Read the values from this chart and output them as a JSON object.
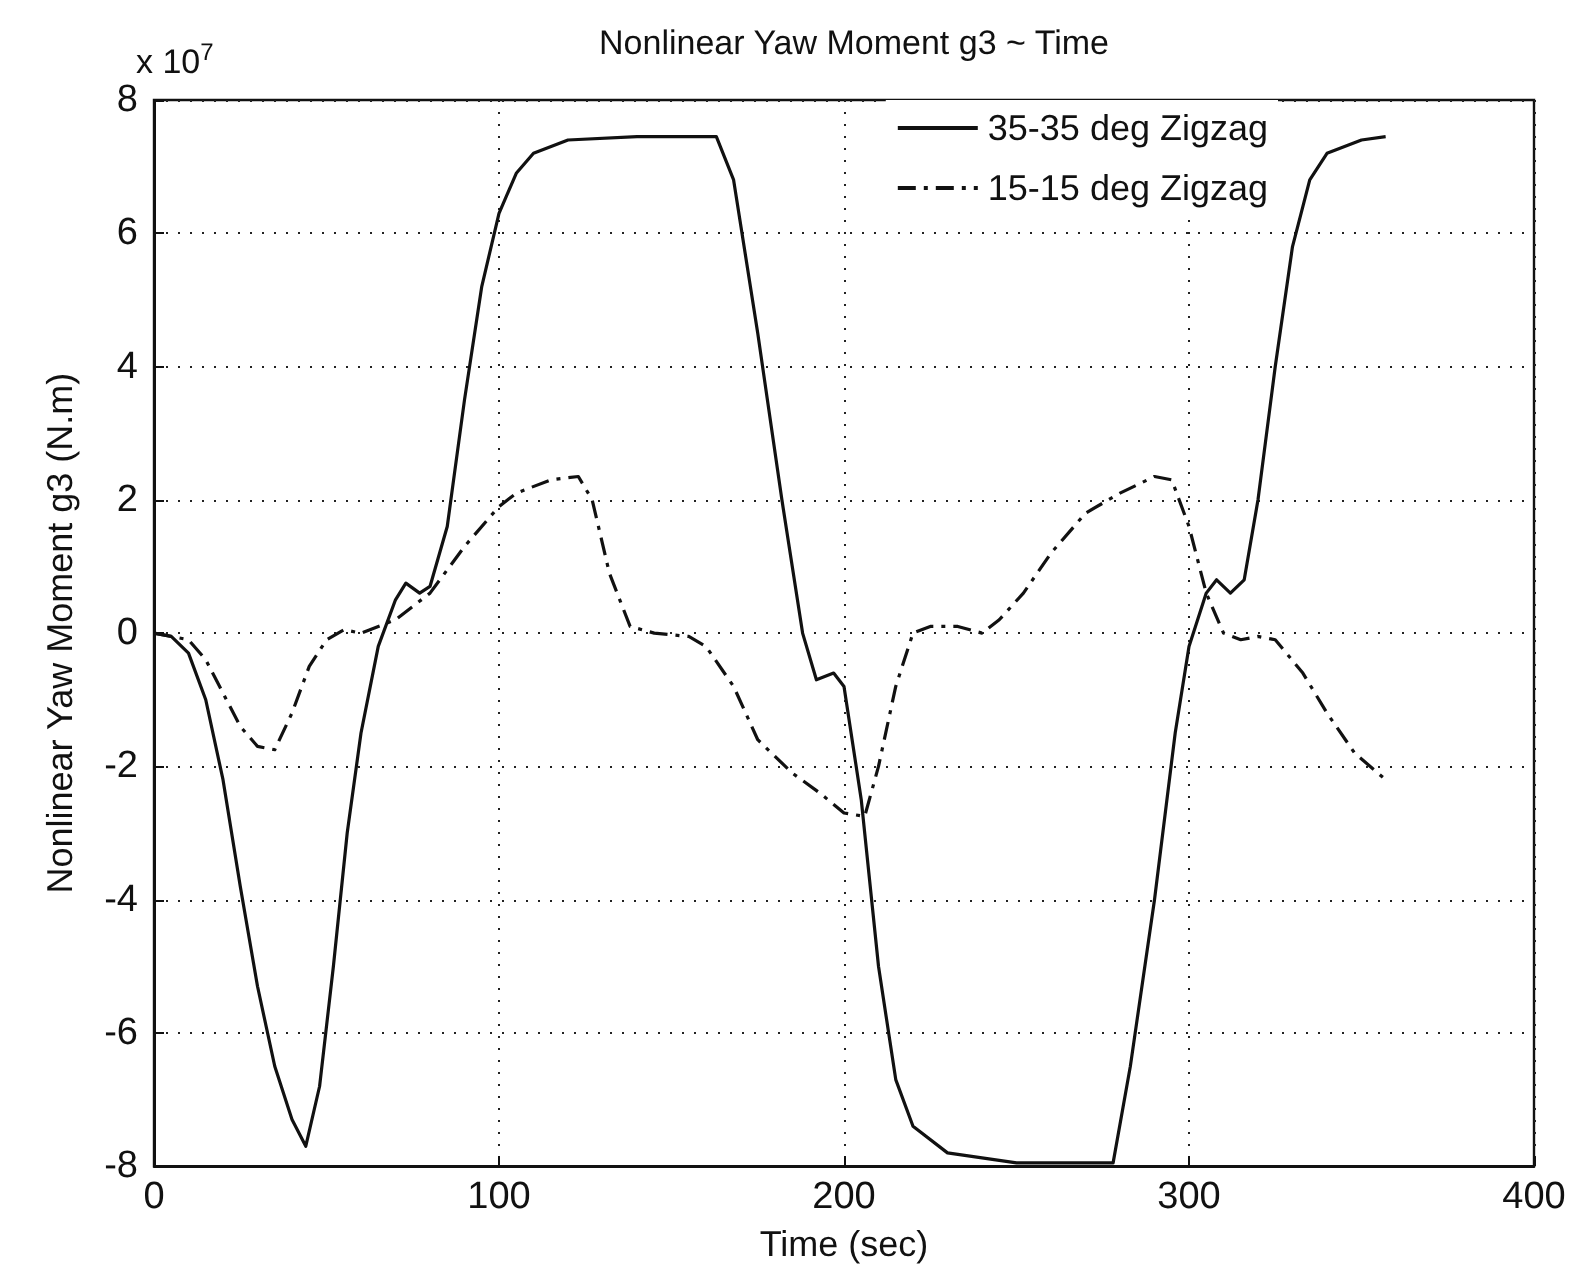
{
  "chart_data": {
    "type": "line",
    "title": "Nonlinear Yaw Moment g3 ~ Time",
    "xlabel": "Time (sec)",
    "ylabel": "Nonlinear Yaw Moment g3 (N.m)",
    "annotations": [
      "x 10$^{7}$"
    ],
    "xlim": [
      0,
      400
    ],
    "xticks": [
      0,
      100,
      200,
      300,
      400
    ],
    "ylim": [
      -8,
      8
    ],
    "yticks": [
      -8,
      -6,
      -4,
      -2,
      0,
      2,
      4,
      6,
      8
    ],
    "grid": true,
    "legend": "top right",
    "marker": "none",
    "series": [
      {
        "name": "35-35 deg Zigzag",
        "color": "#111111",
        "line_style": "solid",
        "x": [
          0,
          5,
          10,
          15,
          20,
          25,
          30,
          35,
          40,
          44,
          48,
          52,
          56,
          60,
          65,
          70,
          73,
          77,
          80,
          85,
          90,
          95,
          100,
          105,
          110,
          120,
          140,
          163,
          168,
          175,
          182,
          188,
          192,
          197,
          200,
          205,
          210,
          215,
          220,
          230,
          250,
          278,
          283,
          290,
          296,
          300,
          305,
          308,
          312,
          316,
          320,
          325,
          330,
          335,
          340,
          350,
          357
        ],
        "values": [
          0,
          -0.05,
          -0.3,
          -1.0,
          -2.2,
          -3.8,
          -5.3,
          -6.5,
          -7.3,
          -7.7,
          -6.8,
          -5.0,
          -3.0,
          -1.5,
          -0.2,
          0.5,
          0.75,
          0.6,
          0.7,
          1.6,
          3.5,
          5.2,
          6.3,
          6.9,
          7.2,
          7.4,
          7.45,
          7.45,
          6.8,
          4.5,
          2.0,
          0.0,
          -0.7,
          -0.6,
          -0.8,
          -2.5,
          -5.0,
          -6.7,
          -7.4,
          -7.8,
          -7.95,
          -7.95,
          -6.5,
          -4.0,
          -1.5,
          -0.2,
          0.6,
          0.8,
          0.6,
          0.8,
          2.0,
          4.0,
          5.8,
          6.8,
          7.2,
          7.4,
          7.45
        ]
      },
      {
        "name": "15-15 deg Zigzag",
        "color": "#111111",
        "line_style": "dashed",
        "x": [
          0,
          10,
          15,
          20,
          25,
          30,
          35,
          40,
          45,
          50,
          55,
          60,
          70,
          80,
          90,
          100,
          105,
          115,
          123,
          127,
          132,
          138,
          145,
          155,
          160,
          168,
          175,
          185,
          193,
          200,
          206,
          210,
          215,
          220,
          225,
          233,
          240,
          245,
          252,
          260,
          270,
          280,
          290,
          295,
          300,
          305,
          310,
          315,
          320,
          325,
          333,
          340,
          348,
          357
        ],
        "values": [
          0,
          -0.1,
          -0.4,
          -0.9,
          -1.4,
          -1.7,
          -1.75,
          -1.2,
          -0.5,
          -0.1,
          0.05,
          0.0,
          0.2,
          0.6,
          1.3,
          1.9,
          2.1,
          2.3,
          2.35,
          2.0,
          0.9,
          0.1,
          0.0,
          -0.05,
          -0.2,
          -0.8,
          -1.6,
          -2.1,
          -2.4,
          -2.7,
          -2.75,
          -2.0,
          -0.8,
          0.0,
          0.1,
          0.1,
          0.0,
          0.2,
          0.6,
          1.2,
          1.8,
          2.1,
          2.35,
          2.3,
          1.6,
          0.6,
          0.0,
          -0.1,
          -0.05,
          -0.1,
          -0.6,
          -1.2,
          -1.8,
          -2.2
        ]
      }
    ]
  }
}
